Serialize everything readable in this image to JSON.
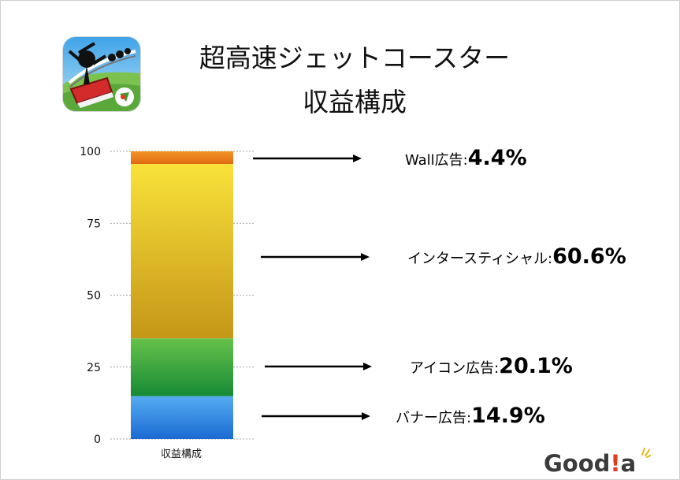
{
  "title": {
    "line1": "超高速ジェットコースター",
    "line2": "収益構成"
  },
  "logo": {
    "text_a": "Good",
    "text_bang": "!",
    "text_b": "a"
  },
  "chart_data": {
    "type": "bar",
    "stacked": true,
    "categories": [
      "収益構成"
    ],
    "ylim": [
      0,
      100
    ],
    "yticks": [
      0,
      25,
      50,
      75,
      100
    ],
    "grid": true,
    "series": [
      {
        "name": "バナー広告",
        "values": [
          14.9
        ],
        "label": "14.9%",
        "colors": [
          "#56acf2",
          "#1a6ad2"
        ]
      },
      {
        "name": "アイコン広告",
        "values": [
          20.1
        ],
        "label": "20.1%",
        "colors": [
          "#66c24a",
          "#178a36"
        ]
      },
      {
        "name": "インタースティシャル",
        "values": [
          60.6
        ],
        "label": "60.6%",
        "colors": [
          "#f9e23a",
          "#c59618"
        ]
      },
      {
        "name": "Wall広告",
        "values": [
          4.4
        ],
        "label": "4.4%",
        "colors": [
          "#f39426",
          "#e06a12"
        ]
      }
    ]
  }
}
